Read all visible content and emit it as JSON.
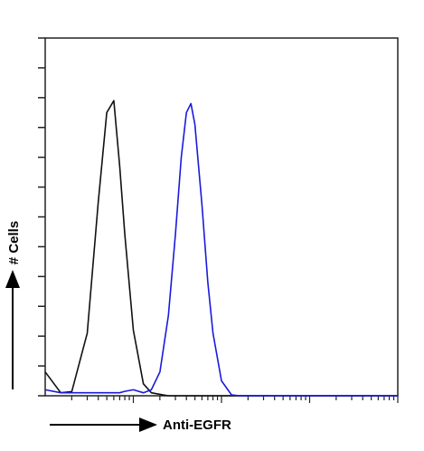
{
  "chart_data": {
    "type": "line",
    "x_label": "Anti-EGFR",
    "y_label": "# Cells",
    "x": [
      1,
      1.5,
      2,
      3,
      4,
      5,
      6,
      7,
      8,
      10,
      13,
      16,
      20,
      25,
      30,
      35,
      40,
      45,
      50,
      60,
      70,
      80,
      100,
      130,
      160,
      200,
      300,
      1000,
      10000
    ],
    "series": [
      {
        "color": "#111111",
        "values": [
          8,
          1,
          1.4,
          21,
          65,
          95,
          99,
          77,
          54,
          22,
          4,
          1,
          0.5,
          0,
          0,
          0,
          0,
          0,
          0,
          0,
          0,
          0,
          0,
          0,
          0,
          0,
          0,
          0,
          0
        ]
      },
      {
        "color": "#1a1adc",
        "values": [
          2,
          1,
          1,
          1,
          1,
          1,
          1,
          1,
          1.5,
          2,
          1,
          2,
          8,
          27,
          54,
          80,
          95,
          98,
          91,
          64,
          38,
          21,
          5,
          0.3,
          0,
          0,
          0,
          0,
          0
        ]
      }
    ],
    "xscale": "log",
    "xlim": [
      1,
      10000
    ],
    "xticks": [
      2,
      3,
      4,
      5,
      6,
      7,
      8,
      9,
      10,
      20,
      30,
      40,
      50,
      60,
      70,
      80,
      90,
      100,
      200,
      300,
      400,
      500,
      600,
      700,
      800,
      900,
      1000,
      2000,
      3000,
      4000,
      5000,
      6000,
      7000,
      8000,
      9000,
      10000
    ],
    "ylim": [
      0,
      120
    ],
    "yticks": [
      0,
      10,
      20,
      30,
      40,
      50,
      60,
      70,
      80,
      90,
      100,
      110,
      120
    ]
  }
}
